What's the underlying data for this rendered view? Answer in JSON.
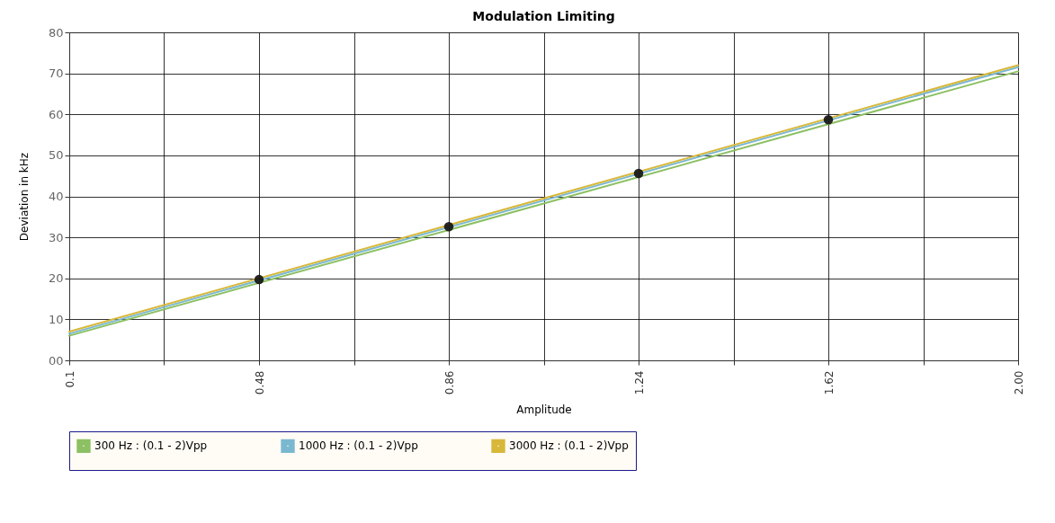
{
  "chart_data": {
    "type": "line",
    "title": "Modulation Limiting",
    "xlabel": "Amplitude",
    "ylabel": "Deviation in kHz",
    "x": [
      0.1,
      2.0
    ],
    "series": [
      {
        "name": "300 Hz : (0.1 - 2)Vpp",
        "color": "#8cc063",
        "values": [
          6.0,
          70.5
        ]
      },
      {
        "name": "1000 Hz : (0.1 - 2)Vpp",
        "color": "#7ab8d0",
        "values": [
          6.5,
          71.5
        ]
      },
      {
        "name": "3000 Hz : (0.1 - 2)Vpp",
        "color": "#d8b83a",
        "values": [
          7.0,
          72.0
        ]
      },
      {
        "type": "scatter",
        "marker": "circle",
        "color": "#111111",
        "x": [
          0.48,
          0.86,
          1.24,
          1.62
        ],
        "values": [
          19.7,
          32.6,
          45.6,
          58.7
        ]
      }
    ],
    "xlim": [
      0.1,
      2.0
    ],
    "xticks": [
      0.1,
      {
        "value": 0.29,
        "label": null
      },
      0.48,
      {
        "value": 0.67,
        "label": null
      },
      0.86,
      {
        "value": 1.05,
        "label": null
      },
      1.24,
      {
        "value": 1.43,
        "label": null
      },
      1.62,
      {
        "value": 1.81,
        "label": null
      },
      {
        "value": 2.0,
        "label": "2.00"
      }
    ],
    "ylim": [
      0,
      80
    ],
    "yticks": [
      {
        "value": 0,
        "label": "00"
      },
      10,
      20,
      30,
      40,
      50,
      60,
      70,
      80
    ],
    "grid": true,
    "legend": "bottom",
    "marker": "none",
    "line_style": "solid"
  }
}
